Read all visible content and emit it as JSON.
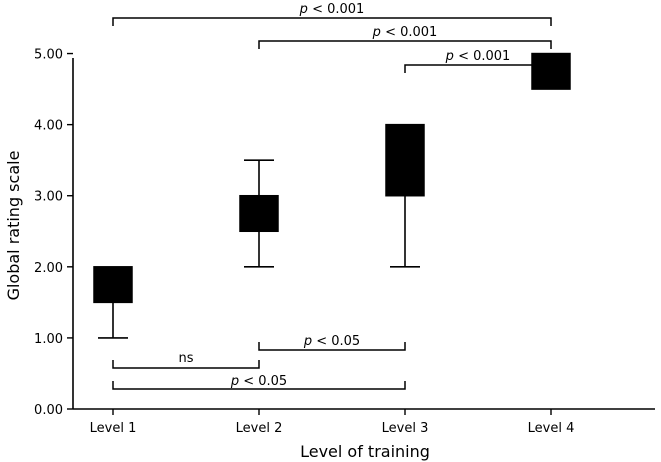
{
  "chart_data": {
    "type": "box",
    "xlabel": "Level of training",
    "ylabel": "Global rating scale",
    "categories": [
      "Level 1",
      "Level 2",
      "Level 3",
      "Level 4"
    ],
    "ylim": [
      0,
      5.5
    ],
    "yticks": [
      "0.00",
      "1.00",
      "2.00",
      "3.00",
      "4.00",
      "5.00"
    ],
    "ytick_values": [
      0,
      1,
      2,
      3,
      4,
      5
    ],
    "boxes": [
      {
        "category": "Level 1",
        "whisker_low": 1.0,
        "q1": 1.5,
        "q3": 2.0,
        "whisker_high": 2.0
      },
      {
        "category": "Level 2",
        "whisker_low": 2.0,
        "q1": 2.5,
        "q3": 3.0,
        "whisker_high": 3.5
      },
      {
        "category": "Level 3",
        "whisker_low": 2.0,
        "q1": 3.0,
        "q3": 4.0,
        "whisker_high": 4.0
      },
      {
        "category": "Level 4",
        "whisker_low": 4.5,
        "q1": 4.5,
        "q3": 5.0,
        "whisker_high": 5.0
      }
    ],
    "comparisons_top": [
      {
        "from": "Level 1",
        "to": "Level 4",
        "label_p": "p",
        "label_rest": " < 0.001"
      },
      {
        "from": "Level 2",
        "to": "Level 4",
        "label_p": "p",
        "label_rest": " < 0.001"
      },
      {
        "from": "Level 3",
        "to": "Level 4",
        "label_p": "p",
        "label_rest": " < 0.001"
      }
    ],
    "comparisons_bottom": [
      {
        "from": "Level 2",
        "to": "Level 3",
        "label_p": "p",
        "label_rest": " < 0.05"
      },
      {
        "from": "Level 1",
        "to": "Level 2",
        "label_p": "",
        "label_rest": "ns"
      },
      {
        "from": "Level 1",
        "to": "Level 3",
        "label_p": "p",
        "label_rest": " < 0.05"
      }
    ]
  }
}
